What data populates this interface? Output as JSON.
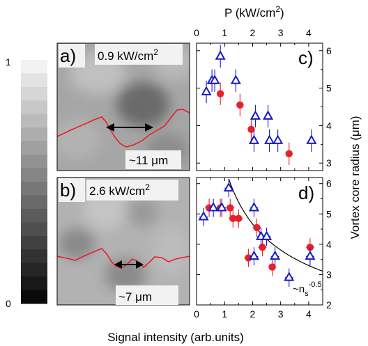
{
  "colorbar": {
    "top_label": "1",
    "bottom_label": "0",
    "levels": [
      "#f2f2f2",
      "#e3e3e3",
      "#d6d6d6",
      "#c8c8c8",
      "#bbbbbb",
      "#adadad",
      "#a0a0a0",
      "#929292",
      "#858585",
      "#777777",
      "#6a6a6a",
      "#5c5c5c",
      "#4f4f4f",
      "#414141",
      "#333333",
      "#262626",
      "#181818",
      "#0a0a0a"
    ]
  },
  "panels": {
    "a": {
      "label": "a)",
      "power": "0.9 kW/cm",
      "power_sup": "2",
      "size_note": "~11 μm"
    },
    "b": {
      "label": "b)",
      "power": "2.6 kW/cm",
      "power_sup": "2",
      "size_note": "~7 μm"
    },
    "c": {
      "label": "c)"
    },
    "d": {
      "label": "d)",
      "fit_label": "~n",
      "fit_sub": "s",
      "fit_sup": "-0.5"
    }
  },
  "colors": {
    "red": "#e8202a",
    "blue": "#1818c8",
    "fit": "#000000",
    "image_light": "#b4b4b4",
    "image_dark": "#6e6e6e"
  },
  "chart_data": [
    {
      "type": "scatter",
      "panel": "c",
      "xlabel_top": "P (kW/cm",
      "xlabel_top_sup": "2",
      "xlabel_top_end": ")",
      "ylabel_right": "Vortex core radius (μm)",
      "xlim": [
        0,
        4.5
      ],
      "ylim": [
        2.8,
        6.2
      ],
      "xticks": [
        "0",
        "1",
        "2",
        "3",
        "4"
      ],
      "yticks": [
        "3",
        "4",
        "5",
        "6"
      ],
      "series": [
        {
          "marker": "circle",
          "color": "#e8202a",
          "points": [
            {
              "x": 0.85,
              "y": 4.85,
              "xerr": 0.1,
              "yerr": 0.3
            },
            {
              "x": 1.55,
              "y": 4.55,
              "xerr": 0.1,
              "yerr": 0.3
            },
            {
              "x": 1.95,
              "y": 3.9,
              "xerr": 0.1,
              "yerr": 0.3
            },
            {
              "x": 3.3,
              "y": 3.25,
              "xerr": 0.1,
              "yerr": 0.3
            }
          ]
        },
        {
          "marker": "triangle",
          "color": "#1818c8",
          "points": [
            {
              "x": 0.35,
              "y": 4.9,
              "xerr": 0.1,
              "yerr": 0.3
            },
            {
              "x": 0.55,
              "y": 5.2,
              "xerr": 0.1,
              "yerr": 0.3
            },
            {
              "x": 0.65,
              "y": 5.2,
              "xerr": 0.1,
              "yerr": 0.3
            },
            {
              "x": 0.85,
              "y": 5.85,
              "xerr": 0.1,
              "yerr": 0.3
            },
            {
              "x": 1.4,
              "y": 5.2,
              "xerr": 0.1,
              "yerr": 0.3
            },
            {
              "x": 2.05,
              "y": 3.6,
              "xerr": 0.1,
              "yerr": 0.3
            },
            {
              "x": 2.1,
              "y": 4.25,
              "xerr": 0.1,
              "yerr": 0.3
            },
            {
              "x": 2.55,
              "y": 4.25,
              "xerr": 0.1,
              "yerr": 0.3
            },
            {
              "x": 2.6,
              "y": 3.6,
              "xerr": 0.1,
              "yerr": 0.3
            },
            {
              "x": 2.9,
              "y": 3.6,
              "xerr": 0.1,
              "yerr": 0.3
            },
            {
              "x": 4.1,
              "y": 3.6,
              "xerr": 0.1,
              "yerr": 0.3
            }
          ]
        }
      ]
    },
    {
      "type": "scatter",
      "panel": "d",
      "xlabel_bottom": "Signal intensity (arb.units)",
      "xlim": [
        0,
        4.5
      ],
      "ylim": [
        2.0,
        6.2
      ],
      "xticks": [
        "0",
        "1",
        "2",
        "3",
        "4"
      ],
      "yticks": [
        "2",
        "3",
        "4",
        "5",
        "6"
      ],
      "fit": {
        "form": "a*x^-0.5",
        "a": 6.6,
        "x_start": 1.15,
        "x_end": 4.5
      },
      "series": [
        {
          "marker": "circle",
          "color": "#e8202a",
          "points": [
            {
              "x": 0.45,
              "y": 5.2,
              "xerr": 0.15,
              "yerr": 0.3
            },
            {
              "x": 0.85,
              "y": 5.2,
              "xerr": 0.15,
              "yerr": 0.3
            },
            {
              "x": 1.2,
              "y": 5.2,
              "xerr": 0.15,
              "yerr": 0.3
            },
            {
              "x": 1.3,
              "y": 4.85,
              "xerr": 0.15,
              "yerr": 0.3
            },
            {
              "x": 1.5,
              "y": 4.85,
              "xerr": 0.15,
              "yerr": 0.3
            },
            {
              "x": 1.85,
              "y": 3.55,
              "xerr": 0.15,
              "yerr": 0.3
            },
            {
              "x": 2.15,
              "y": 4.55,
              "xerr": 0.15,
              "yerr": 0.3
            },
            {
              "x": 2.35,
              "y": 3.9,
              "xerr": 0.15,
              "yerr": 0.3
            },
            {
              "x": 2.7,
              "y": 3.25,
              "xerr": 0.15,
              "yerr": 0.3
            },
            {
              "x": 4.05,
              "y": 3.9,
              "xerr": 0.15,
              "yerr": 0.3
            }
          ]
        },
        {
          "marker": "triangle",
          "color": "#1818c8",
          "points": [
            {
              "x": 0.25,
              "y": 4.9,
              "xerr": 0.15,
              "yerr": 0.3
            },
            {
              "x": 0.6,
              "y": 5.2,
              "xerr": 0.15,
              "yerr": 0.3
            },
            {
              "x": 0.9,
              "y": 5.2,
              "xerr": 0.15,
              "yerr": 0.3
            },
            {
              "x": 1.15,
              "y": 5.85,
              "xerr": 0.15,
              "yerr": 0.3
            },
            {
              "x": 2.05,
              "y": 5.2,
              "xerr": 0.15,
              "yerr": 0.3
            },
            {
              "x": 2.05,
              "y": 3.6,
              "xerr": 0.15,
              "yerr": 0.3
            },
            {
              "x": 2.3,
              "y": 4.25,
              "xerr": 0.15,
              "yerr": 0.3
            },
            {
              "x": 2.5,
              "y": 4.25,
              "xerr": 0.15,
              "yerr": 0.3
            },
            {
              "x": 2.8,
              "y": 3.6,
              "xerr": 0.15,
              "yerr": 0.3
            },
            {
              "x": 3.3,
              "y": 2.9,
              "xerr": 0.15,
              "yerr": 0.3
            },
            {
              "x": 4.05,
              "y": 3.6,
              "xerr": 0.15,
              "yerr": 0.3
            }
          ]
        }
      ]
    }
  ]
}
